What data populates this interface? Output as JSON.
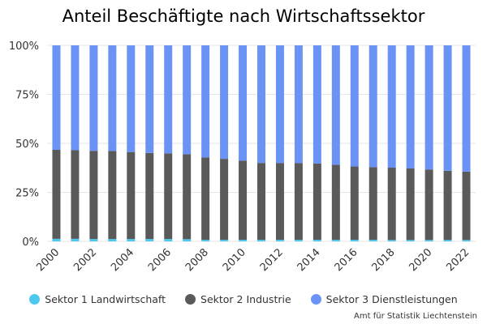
{
  "chart_data": {
    "type": "bar",
    "stacked": true,
    "percent": true,
    "title": "Anteil Beschäftigte nach Wirtschaftssektor",
    "xlabel": "",
    "ylabel": "",
    "ylim": [
      0,
      100
    ],
    "y_ticks": [
      "0%",
      "25%",
      "50%",
      "75%",
      "100%"
    ],
    "x_tick_labels": [
      "2000",
      "2002",
      "2004",
      "2006",
      "2008",
      "2010",
      "2012",
      "2014",
      "2016",
      "2018",
      "2020",
      "2022"
    ],
    "grid": true,
    "legend_position": "bottom",
    "categories": [
      "2000",
      "2001",
      "2002",
      "2003",
      "2004",
      "2005",
      "2006",
      "2007",
      "2008",
      "2009",
      "2010",
      "2011",
      "2012",
      "2013",
      "2014",
      "2015",
      "2016",
      "2017",
      "2018",
      "2019",
      "2020",
      "2021",
      "2022"
    ],
    "series": [
      {
        "name": "Sektor 1 Landwirtschaft",
        "color": "#4dc9f0",
        "values": [
          1.3,
          1.3,
          1.2,
          1.2,
          1.2,
          1.2,
          1.2,
          1.1,
          0.8,
          0.8,
          0.8,
          0.8,
          0.8,
          0.8,
          0.8,
          0.8,
          0.8,
          0.8,
          0.7,
          0.7,
          0.7,
          0.7,
          0.7
        ]
      },
      {
        "name": "Sektor 2 Industrie",
        "color": "#5a5a5a",
        "values": [
          45.4,
          45.2,
          45.0,
          44.9,
          44.4,
          43.9,
          43.7,
          43.4,
          42.0,
          41.3,
          40.4,
          39.2,
          39.2,
          39.1,
          38.9,
          38.3,
          37.4,
          37.1,
          36.9,
          36.5,
          36.0,
          35.3,
          34.9
        ]
      },
      {
        "name": "Sektor 3 Dienstleistungen",
        "color": "#6b93f5",
        "values": [
          53.3,
          53.5,
          53.8,
          53.9,
          54.4,
          54.9,
          55.1,
          55.5,
          57.2,
          57.9,
          58.8,
          60.0,
          60.0,
          60.1,
          60.3,
          60.9,
          61.8,
          62.1,
          62.4,
          62.8,
          63.3,
          64.0,
          64.4
        ]
      }
    ]
  },
  "source": "Amt für Statistik Liechtenstein"
}
